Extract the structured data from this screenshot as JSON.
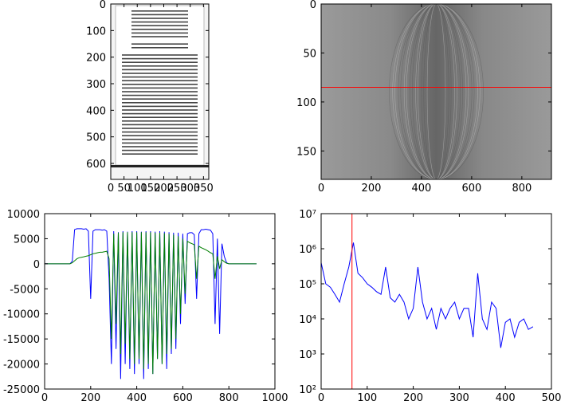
{
  "chart_data": [
    {
      "type": "image",
      "content": "document",
      "xlim": [
        0,
        370
      ],
      "ylim": [
        660,
        0
      ],
      "xticks": [
        0,
        50,
        100,
        150,
        200,
        250,
        300,
        350
      ],
      "yticks": [
        0,
        100,
        200,
        300,
        400,
        500,
        600
      ]
    },
    {
      "type": "image",
      "content": "sinogram",
      "xlim": [
        0,
        918
      ],
      "ylim": [
        179,
        0
      ],
      "xticks": [
        0,
        200,
        400,
        600,
        800
      ],
      "yticks": [
        0,
        50,
        100,
        150
      ],
      "hline": 85,
      "hline_color": "#ff0000"
    },
    {
      "type": "line",
      "xlim": [
        0,
        1000
      ],
      "ylim": [
        -25000,
        10000
      ],
      "xticks": [
        0,
        200,
        400,
        600,
        800,
        1000
      ],
      "yticks": [
        -25000,
        -20000,
        -15000,
        -10000,
        -5000,
        0,
        5000,
        10000
      ],
      "x": [
        0,
        10,
        20,
        30,
        40,
        50,
        60,
        70,
        80,
        90,
        100,
        110,
        120,
        130,
        140,
        150,
        160,
        170,
        180,
        190,
        200,
        210,
        220,
        230,
        240,
        250,
        260,
        270,
        280,
        290,
        300,
        310,
        320,
        330,
        340,
        350,
        360,
        370,
        380,
        390,
        400,
        410,
        420,
        430,
        440,
        450,
        460,
        470,
        480,
        490,
        500,
        510,
        520,
        530,
        540,
        550,
        560,
        570,
        580,
        590,
        600,
        610,
        620,
        630,
        640,
        650,
        660,
        670,
        680,
        690,
        700,
        710,
        720,
        730,
        740,
        750,
        760,
        770,
        780,
        790,
        800,
        810,
        820,
        830,
        840,
        850,
        860,
        870,
        880,
        890,
        900,
        910,
        920
      ],
      "series": [
        {
          "color": "#0000ff",
          "values": [
            0,
            0,
            0,
            0,
            0,
            0,
            0,
            0,
            0,
            0,
            0,
            0,
            500,
            6800,
            7000,
            7000,
            7000,
            6900,
            7000,
            6500,
            -7000,
            6500,
            6800,
            6800,
            6800,
            6700,
            6800,
            6500,
            -3000,
            -20000,
            6500,
            -17000,
            6300,
            -23000,
            6500,
            -20000,
            6400,
            -21000,
            6500,
            -22000,
            6500,
            -20000,
            6400,
            -23000,
            6500,
            -21000,
            6500,
            -22000,
            6400,
            -19000,
            6500,
            -20000,
            6400,
            -21000,
            6300,
            -18000,
            6200,
            -17000,
            6200,
            -12000,
            6000,
            -8000,
            6000,
            6200,
            6200,
            5800,
            -7000,
            6000,
            6800,
            6800,
            6900,
            6800,
            6700,
            6000,
            -12000,
            5000,
            -14000,
            4000,
            1500,
            200,
            0,
            0,
            0,
            0,
            0,
            0,
            0,
            0,
            0,
            0,
            0,
            0,
            0
          ]
        },
        {
          "color": "#008000",
          "values": [
            0,
            0,
            0,
            0,
            0,
            0,
            0,
            0,
            0,
            0,
            0,
            0,
            200,
            600,
            1000,
            1200,
            1300,
            1400,
            1500,
            1600,
            1800,
            2000,
            2100,
            2200,
            2300,
            2300,
            2400,
            2500,
            1000,
            -15000,
            6000,
            -12000,
            6200,
            -18000,
            6300,
            -16000,
            6300,
            -19000,
            6300,
            -20000,
            6300,
            -19000,
            6300,
            -21000,
            6300,
            -20000,
            6300,
            -22000,
            6200,
            -19000,
            6200,
            -20000,
            6100,
            -18000,
            6000,
            -17000,
            5800,
            -15000,
            5500,
            -10000,
            5000,
            -6000,
            4500,
            4200,
            4000,
            3800,
            -3000,
            3500,
            3200,
            3000,
            2800,
            2500,
            2200,
            2000,
            -3000,
            1500,
            -1000,
            800,
            400,
            100,
            0,
            0,
            0,
            0,
            0,
            0,
            0,
            0,
            0,
            0,
            0,
            0,
            0
          ]
        }
      ]
    },
    {
      "type": "line",
      "log_y": true,
      "xlim": [
        0,
        500
      ],
      "ylim": [
        100,
        10000000
      ],
      "xticks": [
        0,
        100,
        200,
        300,
        400,
        500
      ],
      "yticks": [
        {
          "value": 100,
          "label": "10²"
        },
        {
          "value": 1000,
          "label": "10³"
        },
        {
          "value": 10000,
          "label": "10⁴"
        },
        {
          "value": 100000,
          "label": "10⁵"
        },
        {
          "value": 1000000,
          "label": "10⁶"
        },
        {
          "value": 10000000,
          "label": "10⁷"
        }
      ],
      "vline": 67,
      "vline_color": "#ff0000",
      "x": [
        0,
        10,
        20,
        30,
        40,
        50,
        60,
        70,
        80,
        90,
        100,
        110,
        120,
        130,
        140,
        150,
        160,
        170,
        180,
        190,
        200,
        210,
        220,
        230,
        240,
        250,
        260,
        270,
        280,
        290,
        300,
        310,
        320,
        330,
        340,
        350,
        360,
        370,
        380,
        390,
        400,
        410,
        420,
        430,
        440,
        450,
        460
      ],
      "series": [
        {
          "color": "#0000ff",
          "values": [
            400000,
            100000,
            80000,
            50000,
            30000,
            100000,
            300000,
            1500000,
            200000,
            150000,
            100000,
            80000,
            60000,
            50000,
            300000,
            40000,
            30000,
            50000,
            30000,
            10000,
            20000,
            300000,
            30000,
            10000,
            20000,
            5000,
            20000,
            10000,
            20000,
            30000,
            10000,
            20000,
            20000,
            3000,
            200000,
            10000,
            5000,
            30000,
            20000,
            1500,
            8000,
            10000,
            3000,
            8000,
            10000,
            5000,
            6000
          ]
        }
      ]
    }
  ]
}
